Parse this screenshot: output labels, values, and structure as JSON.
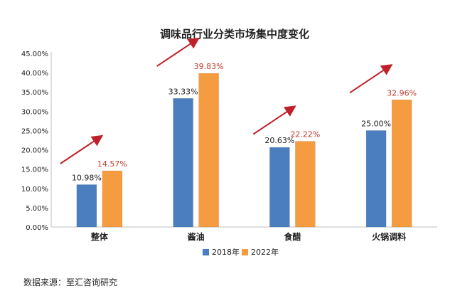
{
  "chart_data": {
    "type": "bar",
    "title": "调味品行业分类市场集中度变化",
    "categories": [
      "整体",
      "酱油",
      "食醋",
      "火锅调料"
    ],
    "series": [
      {
        "name": "2018年",
        "values": [
          10.98,
          33.33,
          20.63,
          25.0
        ],
        "labels": [
          "10.98%",
          "33.33%",
          "20.63%",
          "25.00%"
        ],
        "color": "#4a7ebf",
        "label_color": "#222222"
      },
      {
        "name": "2022年",
        "values": [
          14.57,
          39.83,
          22.22,
          32.96
        ],
        "labels": [
          "14.57%",
          "39.83%",
          "22.22%",
          "32.96%"
        ],
        "color": "#f59b40",
        "label_color": "#c0392b"
      }
    ],
    "ylim": [
      0,
      45
    ],
    "ytick_values": [
      0,
      5,
      10,
      15,
      20,
      25,
      30,
      35,
      40,
      45
    ],
    "ytick_labels": [
      "0.00%",
      "5.00%",
      "10.00%",
      "15.00%",
      "20.00%",
      "25.00%",
      "30.00%",
      "35.00%",
      "40.00%",
      "45.00%"
    ],
    "legend_position": "bottom",
    "grid": false,
    "arrow_color": "#c0202a",
    "xlabel": "",
    "ylabel": ""
  },
  "source_text": "数据来源：至汇咨询研究"
}
